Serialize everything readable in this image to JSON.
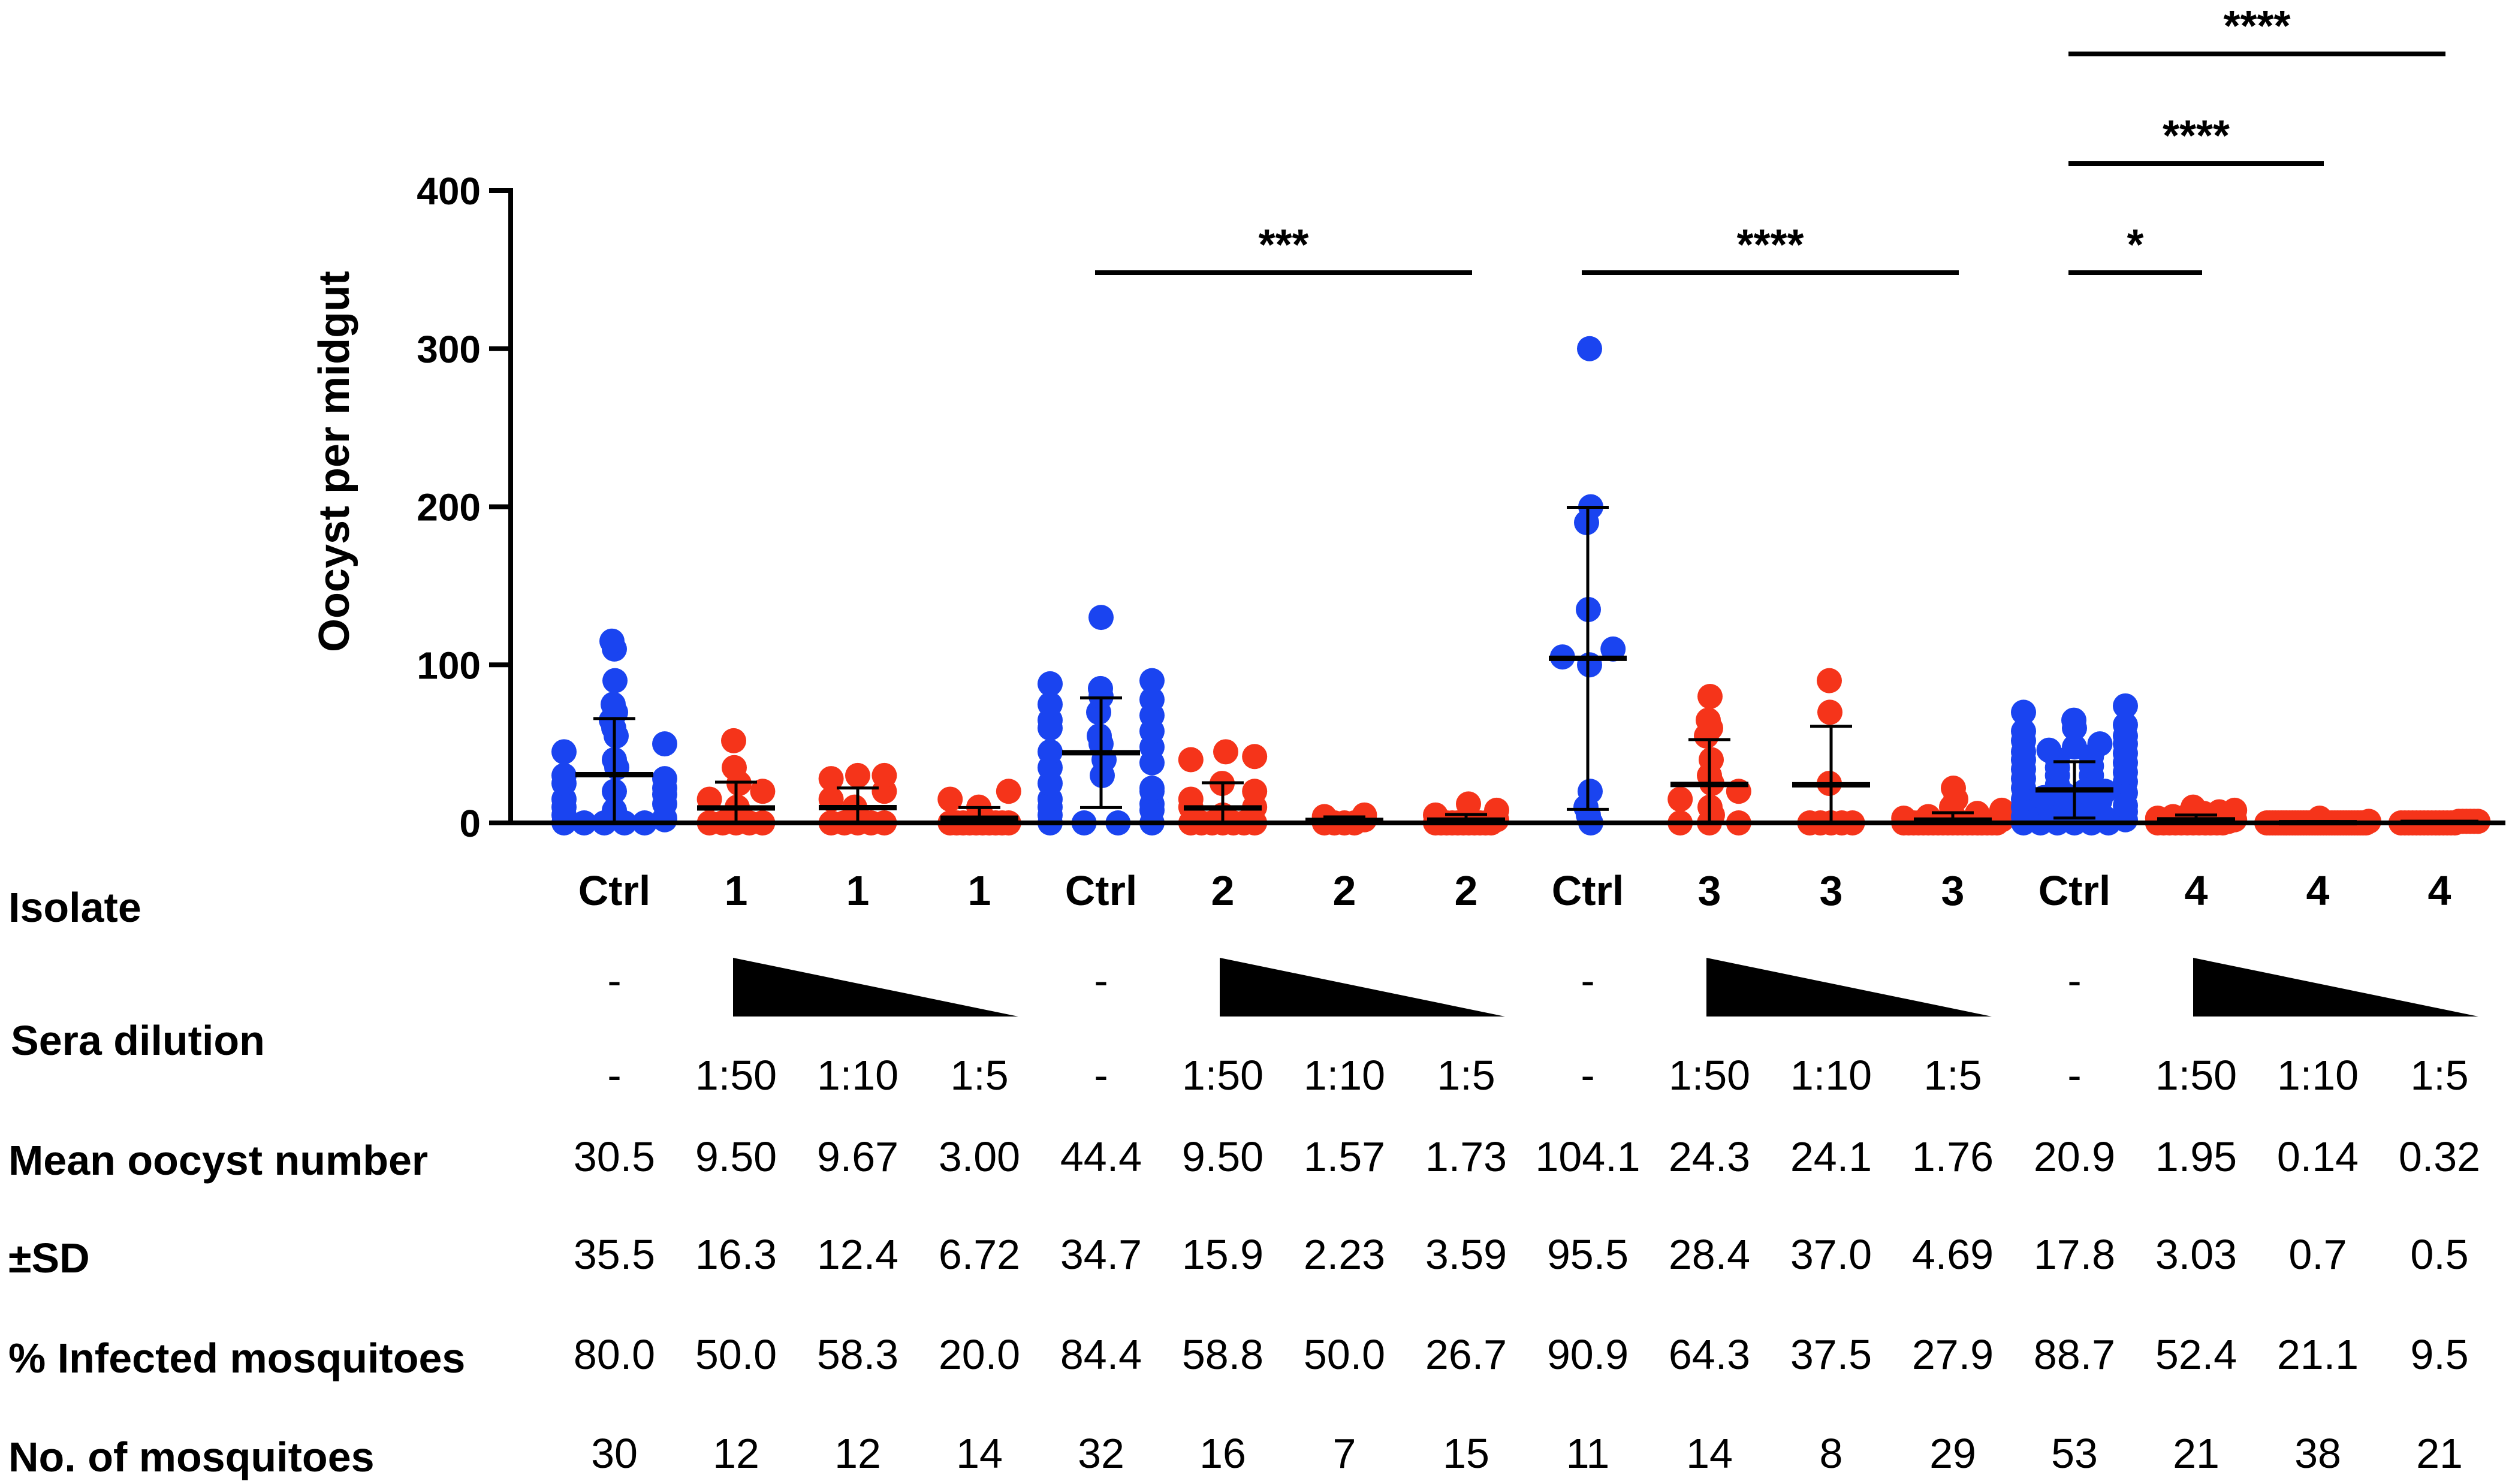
{
  "colors": {
    "control": "#1a44f0",
    "treated": "#f5341a",
    "axis": "#000000"
  },
  "chart_data": {
    "type": "scatter",
    "ylabel": "Oocyst per midgut",
    "ylim": [
      0,
      400
    ],
    "yticks": [
      0,
      100,
      200,
      300,
      400
    ],
    "ytick_labels": [
      "0",
      "100",
      "200",
      "300",
      "400"
    ],
    "groups": [
      {
        "label": "Ctrl",
        "role": "control",
        "dilution": "-",
        "mean": 30.5,
        "sd": 35.5,
        "points": [
          0,
          0,
          0,
          0,
          0,
          5,
          10,
          15,
          20,
          25,
          30,
          35,
          40,
          45,
          50,
          55,
          60,
          65,
          70,
          75,
          90,
          110,
          115,
          2,
          8,
          3,
          12,
          18,
          22,
          28
        ]
      },
      {
        "label": "1",
        "role": "treated",
        "dilution": "1:50",
        "mean": 9.5,
        "sd": 16.3,
        "points": [
          0,
          0,
          0,
          0,
          0,
          5,
          10,
          15,
          20,
          25,
          35,
          52
        ]
      },
      {
        "label": "1",
        "role": "treated",
        "dilution": "1:10",
        "mean": 9.67,
        "sd": 12.4,
        "points": [
          0,
          0,
          0,
          0,
          0,
          5,
          10,
          15,
          20,
          28,
          30,
          30
        ]
      },
      {
        "label": "1",
        "role": "treated",
        "dilution": "1:5",
        "mean": 3.0,
        "sd": 6.72,
        "points": [
          0,
          0,
          0,
          0,
          0,
          0,
          0,
          0,
          0,
          0,
          5,
          10,
          15,
          20
        ]
      },
      {
        "label": "Ctrl",
        "role": "control",
        "dilution": "-",
        "mean": 44.4,
        "sd": 34.7,
        "points": [
          0,
          0,
          0,
          0,
          5,
          10,
          15,
          20,
          25,
          30,
          35,
          40,
          45,
          50,
          55,
          60,
          65,
          70,
          75,
          80,
          85,
          88,
          90,
          130,
          8,
          12,
          22,
          38,
          48,
          58,
          68,
          78
        ]
      },
      {
        "label": "2",
        "role": "treated",
        "dilution": "1:50",
        "mean": 9.5,
        "sd": 15.9,
        "points": [
          0,
          0,
          0,
          0,
          0,
          0,
          0,
          5,
          10,
          10,
          15,
          20,
          25,
          40,
          42,
          45
        ]
      },
      {
        "label": "2",
        "role": "treated",
        "dilution": "1:10",
        "mean": 1.57,
        "sd": 2.23,
        "points": [
          0,
          0,
          0,
          0,
          2,
          4,
          5
        ]
      },
      {
        "label": "2",
        "role": "treated",
        "dilution": "1:5",
        "mean": 1.73,
        "sd": 3.59,
        "points": [
          0,
          0,
          0,
          0,
          0,
          0,
          0,
          0,
          0,
          0,
          0,
          2,
          5,
          8,
          12
        ]
      },
      {
        "label": "Ctrl",
        "role": "control",
        "dilution": "-",
        "mean": 104.1,
        "sd": 95.5,
        "points": [
          0,
          5,
          10,
          20,
          100,
          105,
          110,
          135,
          190,
          200,
          300
        ]
      },
      {
        "label": "3",
        "role": "treated",
        "dilution": "1:50",
        "mean": 24.3,
        "sd": 28.4,
        "points": [
          0,
          0,
          0,
          5,
          10,
          15,
          20,
          25,
          30,
          40,
          55,
          60,
          65,
          80
        ]
      },
      {
        "label": "3",
        "role": "treated",
        "dilution": "1:10",
        "mean": 24.1,
        "sd": 37.0,
        "points": [
          0,
          0,
          0,
          0,
          0,
          25,
          70,
          90
        ]
      },
      {
        "label": "3",
        "role": "treated",
        "dilution": "1:5",
        "mean": 1.76,
        "sd": 4.69,
        "points": [
          0,
          0,
          0,
          0,
          0,
          0,
          0,
          0,
          0,
          0,
          0,
          0,
          0,
          0,
          0,
          0,
          0,
          0,
          0,
          0,
          2,
          3,
          4,
          5,
          6,
          8,
          10,
          15,
          22
        ]
      },
      {
        "label": "Ctrl",
        "role": "control",
        "dilution": "-",
        "mean": 20.9,
        "sd": 17.8,
        "points": [
          0,
          0,
          0,
          0,
          0,
          0,
          2,
          4,
          5,
          6,
          8,
          10,
          10,
          12,
          14,
          15,
          16,
          18,
          20,
          20,
          22,
          24,
          25,
          26,
          28,
          30,
          30,
          32,
          34,
          35,
          36,
          38,
          40,
          40,
          42,
          44,
          45,
          46,
          48,
          50,
          50,
          52,
          55,
          58,
          60,
          62,
          65,
          70,
          74,
          3,
          7,
          11,
          19
        ]
      },
      {
        "label": "4",
        "role": "treated",
        "dilution": "1:50",
        "mean": 1.95,
        "sd": 3.03,
        "points": [
          0,
          0,
          0,
          0,
          0,
          0,
          0,
          0,
          0,
          0,
          0,
          0,
          1,
          2,
          3,
          4,
          5,
          6,
          7,
          8,
          10
        ]
      },
      {
        "label": "4",
        "role": "treated",
        "dilution": "1:10",
        "mean": 0.14,
        "sd": 0.7,
        "points": [
          0,
          0,
          0,
          0,
          0,
          0,
          0,
          0,
          0,
          0,
          0,
          0,
          0,
          0,
          0,
          0,
          0,
          0,
          0,
          0,
          0,
          0,
          0,
          0,
          0,
          0,
          0,
          0,
          0,
          0,
          0,
          0,
          0,
          0,
          0,
          0,
          1,
          3
        ]
      },
      {
        "label": "4",
        "role": "treated",
        "dilution": "1:5",
        "mean": 0.32,
        "sd": 0.5,
        "points": [
          0,
          0,
          0,
          0,
          0,
          0,
          0,
          0,
          0,
          0,
          0,
          0,
          0,
          0,
          0,
          1,
          1,
          1,
          1,
          1,
          1
        ]
      }
    ],
    "significance": [
      {
        "from": 4,
        "to": 7,
        "text": "***",
        "level": 0
      },
      {
        "from": 8,
        "to": 11,
        "text": "****",
        "level": 0
      },
      {
        "from": 12,
        "to": 13,
        "text": "*",
        "level": 0
      },
      {
        "from": 12,
        "to": 14,
        "text": "****",
        "level": 1
      },
      {
        "from": 12,
        "to": 15,
        "text": "****",
        "level": 2
      }
    ],
    "table": {
      "isolate_label": "Isolate",
      "sera_label": "Sera dilution",
      "rows": [
        {
          "label": "Mean oocyst number",
          "values": [
            "30.5",
            "9.50",
            "9.67",
            "3.00",
            "44.4",
            "9.50",
            "1.57",
            "1.73",
            "104.1",
            "24.3",
            "24.1",
            "1.76",
            "20.9",
            "1.95",
            "0.14",
            "0.32"
          ]
        },
        {
          "label": "±SD",
          "values": [
            "35.5",
            "16.3",
            "12.4",
            "6.72",
            "34.7",
            "15.9",
            "2.23",
            "3.59",
            "95.5",
            "28.4",
            "37.0",
            "4.69",
            "17.8",
            "3.03",
            "0.7",
            "0.5"
          ]
        },
        {
          "label": "% Infected mosquitoes",
          "values": [
            "80.0",
            "50.0",
            "58.3",
            "20.0",
            "84.4",
            "58.8",
            "50.0",
            "26.7",
            "90.9",
            "64.3",
            "37.5",
            "27.9",
            "88.7",
            "52.4",
            "21.1",
            "9.5"
          ]
        },
        {
          "label": "No. of mosquitoes",
          "values": [
            "30",
            "12",
            "12",
            "14",
            "32",
            "16",
            "7",
            "15",
            "11",
            "14",
            "8",
            "29",
            "53",
            "21",
            "38",
            "21"
          ]
        }
      ]
    }
  }
}
